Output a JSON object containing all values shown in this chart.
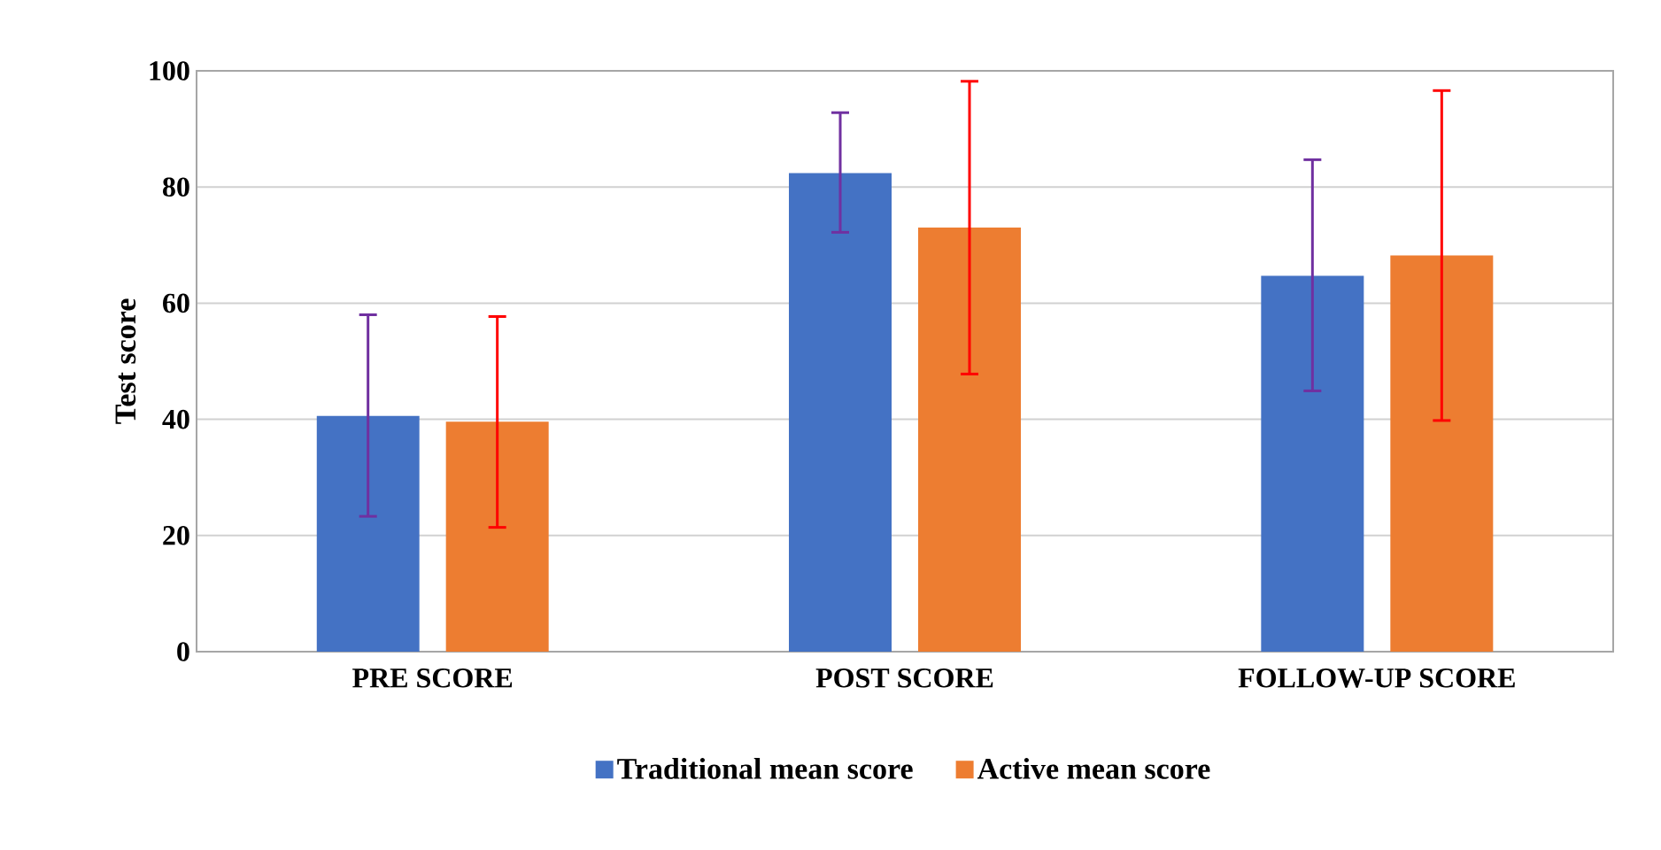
{
  "chart_data": {
    "type": "bar",
    "ylabel": "Test score",
    "categories": [
      "PRE SCORE",
      "POST SCORE",
      "FOLLOW-UP SCORE"
    ],
    "series": [
      {
        "name": "Traditional mean score",
        "color": "#4472c4",
        "values": [
          40.6,
          82.4,
          64.7
        ],
        "errors": [
          [
            23.3,
            58.0
          ],
          [
            72.2,
            92.8
          ],
          [
            44.9,
            84.7
          ]
        ]
      },
      {
        "name": "Active mean score",
        "color": "#ed7d31",
        "values": [
          39.6,
          73.0,
          68.2
        ],
        "errors": [
          [
            21.4,
            57.7
          ],
          [
            47.8,
            98.2
          ],
          [
            39.8,
            96.6
          ]
        ]
      }
    ],
    "ylim": [
      0,
      100
    ],
    "yticks": [
      0,
      20,
      40,
      60,
      80,
      100
    ],
    "grid": "y",
    "legend": "bottom"
  }
}
